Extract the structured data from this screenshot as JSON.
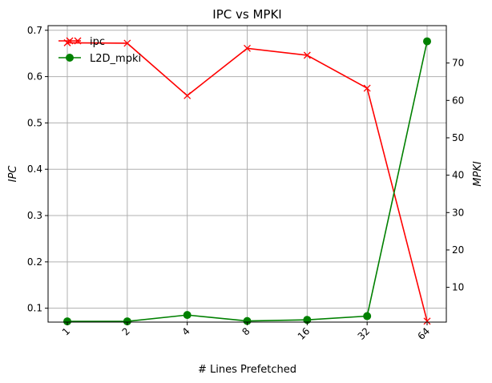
{
  "chart_data": {
    "type": "line",
    "title": "IPC vs MPKI",
    "xlabel": "# Lines Prefetched",
    "ylabel_left": "IPC",
    "ylabel_right": "MPKI",
    "categories": [
      "1",
      "2",
      "4",
      "8",
      "16",
      "32",
      "64"
    ],
    "ylim_left": [
      0.07,
      0.71
    ],
    "ylim_right": [
      0.7,
      80
    ],
    "yticks_left": [
      "0.1",
      "0.2",
      "0.3",
      "0.4",
      "0.5",
      "0.6",
      "0.7"
    ],
    "yticks_right": [
      "10",
      "20",
      "30",
      "40",
      "50",
      "60",
      "70"
    ],
    "grid": true,
    "legend_placement": "top-left",
    "series": [
      {
        "name": "ipc",
        "axis": "left",
        "color": "#ff0000",
        "marker": "x",
        "values": [
          0.673,
          0.672,
          0.559,
          0.661,
          0.646,
          0.575,
          0.072
        ]
      },
      {
        "name": "L2D_mpki",
        "axis": "right",
        "color": "#008000",
        "marker": "o",
        "values": [
          0.9,
          0.9,
          2.6,
          1.0,
          1.3,
          2.3,
          75.8
        ]
      }
    ]
  }
}
